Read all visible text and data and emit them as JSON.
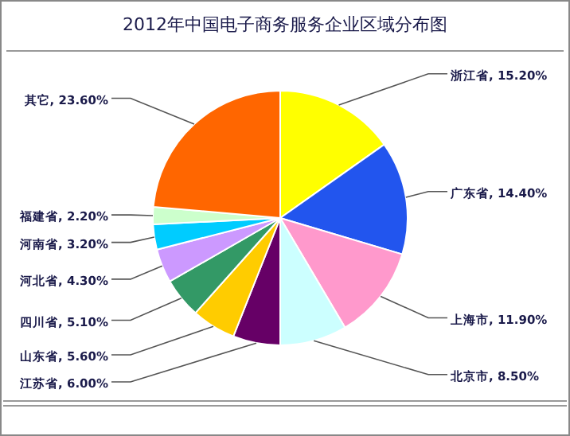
{
  "chart_data": {
    "type": "pie",
    "title": "2012年中国电子商务服务企业区域分布图",
    "categories": [
      "浙江省",
      "广东省",
      "上海市",
      "北京市",
      "江苏省",
      "山东省",
      "四川省",
      "河北省",
      "河南省",
      "福建省",
      "其它"
    ],
    "values": [
      15.2,
      14.4,
      11.9,
      8.5,
      6.0,
      5.6,
      5.1,
      4.3,
      3.2,
      2.2,
      23.6
    ],
    "value_labels": [
      "15.20%",
      "14.40%",
      "11.90%",
      "8.50%",
      "6.00%",
      "5.60%",
      "5.10%",
      "4.30%",
      "3.20%",
      "2.20%",
      "23.60%"
    ],
    "colors": [
      "#ffff00",
      "#2255ee",
      "#ff99cc",
      "#ccffff",
      "#660066",
      "#ffcc00",
      "#339966",
      "#cc99ff",
      "#00ccff",
      "#ccffcc",
      "#ff6600"
    ]
  }
}
